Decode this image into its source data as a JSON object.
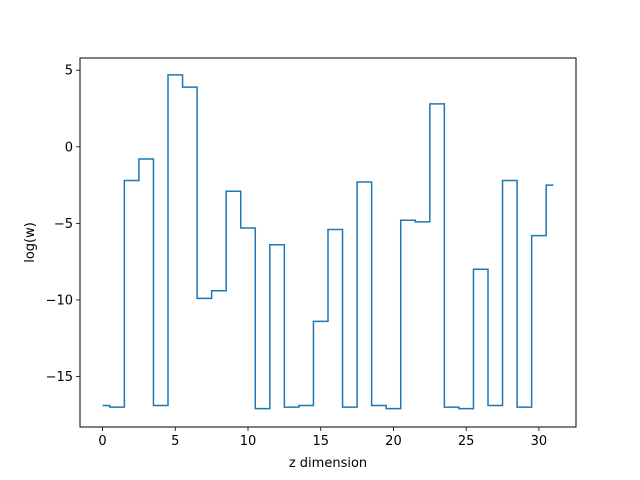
{
  "chart_data": {
    "type": "line",
    "drawstyle": "steps-mid",
    "title": "",
    "xlabel": "z dimension",
    "ylabel": "log(w)",
    "xlim": [
      -1.55,
      32.55
    ],
    "ylim": [
      -18.3,
      5.8
    ],
    "xticks": [
      0,
      5,
      10,
      15,
      20,
      25,
      30
    ],
    "yticks": [
      5,
      0,
      -5,
      -10,
      -15
    ],
    "ytick_labels": [
      "5",
      "0",
      "−5",
      "−10",
      "−15"
    ],
    "grid": false,
    "legend": "none",
    "series": [
      {
        "color": "#1f77b4",
        "x": [
          0,
          1,
          2,
          3,
          4,
          5,
          6,
          7,
          8,
          9,
          10,
          11,
          12,
          13,
          14,
          15,
          16,
          17,
          18,
          19,
          20,
          21,
          22,
          23,
          24,
          25,
          26,
          27,
          28,
          29,
          30,
          31
        ],
        "y": [
          -16.9,
          -17.0,
          -2.2,
          -0.8,
          -16.9,
          4.7,
          3.9,
          -9.9,
          -9.4,
          -2.9,
          -5.3,
          -17.1,
          -6.4,
          -17.0,
          -16.9,
          -11.4,
          -5.4,
          -17.0,
          -2.3,
          -16.9,
          -17.1,
          -4.8,
          -4.9,
          2.8,
          -17.0,
          -17.1,
          -8.0,
          -16.9,
          -2.2,
          -17.0,
          -5.8,
          -2.5
        ]
      }
    ]
  }
}
